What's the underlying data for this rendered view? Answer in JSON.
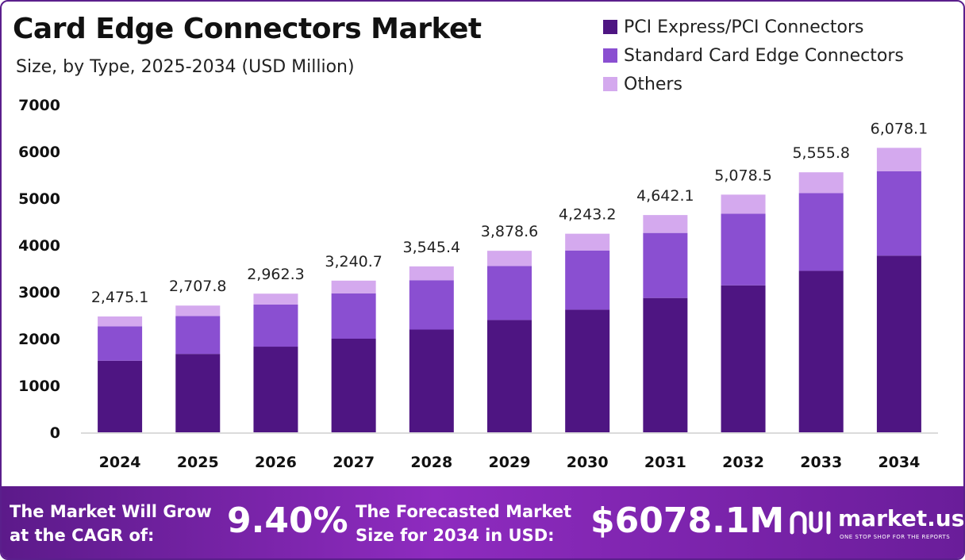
{
  "header": {
    "title": "Card Edge Connectors Market",
    "subtitle": "Size, by Type, 2025-2034 (USD Million)"
  },
  "legend": [
    {
      "label": "PCI Express/PCI Connectors",
      "color": "#4e1582"
    },
    {
      "label": "Standard Card Edge Connectors",
      "color": "#8a4fd1"
    },
    {
      "label": "Others",
      "color": "#d4a9ee"
    }
  ],
  "chart_data": {
    "type": "bar",
    "stacked": true,
    "categories": [
      "2024",
      "2025",
      "2026",
      "2027",
      "2028",
      "2029",
      "2030",
      "2031",
      "2032",
      "2033",
      "2034"
    ],
    "series": [
      {
        "name": "PCI Express/PCI Connectors",
        "values": [
          1530,
          1675,
          1830,
          2000,
          2195,
          2400,
          2620,
          2870,
          3140,
          3450,
          3775
        ]
      },
      {
        "name": "Standard Card Edge Connectors",
        "values": [
          735,
          810,
          900,
          970,
          1055,
          1155,
          1265,
          1390,
          1530,
          1660,
          1805
        ]
      },
      {
        "name": "Others",
        "values": [
          210.1,
          222.8,
          232.3,
          270.7,
          295.4,
          323.6,
          358.2,
          382.1,
          408.5,
          445.8,
          498.1
        ]
      }
    ],
    "totals": [
      "2,475.1",
      "2,707.8",
      "2,962.3",
      "3,240.7",
      "3,545.4",
      "3,878.6",
      "4,243.2",
      "4,642.1",
      "5,078.5",
      "5,555.8",
      "6,078.1"
    ],
    "ylim": [
      0,
      7000
    ],
    "yticks": [
      "0",
      "1000",
      "2000",
      "3000",
      "4000",
      "5000",
      "6000",
      "7000"
    ],
    "grid": false,
    "legend_position": "top-right"
  },
  "footer": {
    "cagr_line1": "The Market Will Grow",
    "cagr_line2": "at the CAGR of:",
    "cagr_value": "9.40%",
    "size_line1": "The Forecasted Market",
    "size_line2": "Size for 2034 in USD:",
    "size_value": "$6078.1M",
    "brand_name": "market.us",
    "brand_tagline": "ONE STOP SHOP FOR THE REPORTS"
  }
}
